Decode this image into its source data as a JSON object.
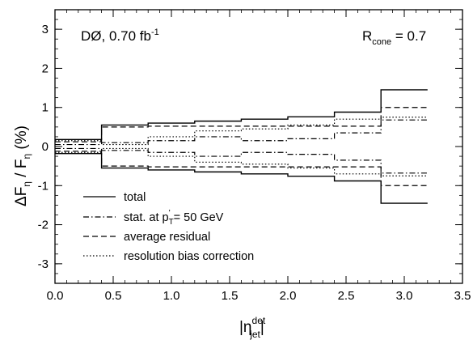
{
  "chart_data": {
    "type": "line",
    "title": "",
    "xlim": [
      0,
      3.5
    ],
    "ylim": [
      -3.5,
      3.5
    ],
    "xticks": [
      "0.0",
      "0.5",
      "1.0",
      "1.5",
      "2.0",
      "2.5",
      "3.0",
      "3.5"
    ],
    "yticks": [
      "-3",
      "-2",
      "-1",
      "0",
      "1",
      "2",
      "3"
    ],
    "xlabel": {
      "main": "|η",
      "sup": "det",
      "sub": "jet",
      "end": "|"
    },
    "ylabel": {
      "a": "ΔF",
      "a_sub": "η",
      "b": " / F",
      "b_sub": "η",
      "c": " (%)"
    },
    "annotations": {
      "left": {
        "main": "DØ, 0.70 fb",
        "sup": "-1"
      },
      "right": {
        "main": "R",
        "sub": "cone",
        "end": " = 0.7"
      }
    },
    "legend": {
      "position": "bottom-left",
      "entries": [
        {
          "key": "total",
          "label": "total"
        },
        {
          "key": "stat",
          "label": "stat. at p",
          "sub": "T",
          "sup": "'",
          "end": " = 50 GeV"
        },
        {
          "key": "residual",
          "label": "average residual"
        },
        {
          "key": "resolution",
          "label": "resolution bias correction"
        }
      ]
    },
    "bin_edges": [
      0.0,
      0.4,
      0.8,
      1.2,
      1.6,
      2.0,
      2.4,
      2.8,
      3.2
    ],
    "series": [
      {
        "key": "total",
        "style": "solid",
        "upper": [
          0.18,
          0.55,
          0.6,
          0.65,
          0.7,
          0.76,
          0.88,
          1.45
        ],
        "lower": [
          -0.18,
          -0.55,
          -0.6,
          -0.65,
          -0.7,
          -0.76,
          -0.88,
          -1.45
        ]
      },
      {
        "key": "stat",
        "style": "dashdot",
        "upper": [
          0.05,
          0.1,
          0.15,
          0.25,
          0.15,
          0.2,
          0.35,
          0.68
        ],
        "lower": [
          -0.05,
          -0.1,
          -0.15,
          -0.25,
          -0.15,
          -0.2,
          -0.35,
          -0.68
        ]
      },
      {
        "key": "residual",
        "style": "dashed",
        "upper": [
          0.12,
          0.5,
          0.52,
          0.52,
          0.52,
          0.52,
          0.52,
          1.0
        ],
        "lower": [
          -0.12,
          -0.5,
          -0.52,
          -0.52,
          -0.52,
          -0.52,
          -0.52,
          -1.0
        ]
      },
      {
        "key": "resolution",
        "style": "dotted",
        "upper": [
          0.15,
          0.05,
          0.25,
          0.4,
          0.45,
          0.55,
          0.7,
          0.75
        ],
        "lower": [
          -0.15,
          -0.05,
          -0.25,
          -0.4,
          -0.45,
          -0.55,
          -0.7,
          -0.75
        ]
      }
    ]
  }
}
